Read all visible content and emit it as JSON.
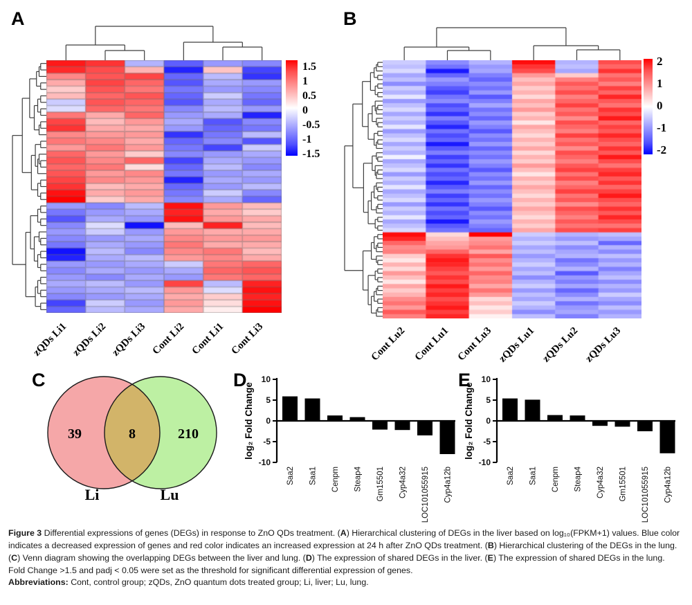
{
  "chart_data": [
    {
      "panel": "A",
      "type": "heatmap",
      "columns": [
        "zQDs Li1",
        "zQDs Li2",
        "zQDs Li3",
        "Cont Li2",
        "Cont Li1",
        "Cont Li3"
      ],
      "colorbar_ticks": [
        "1.5",
        "1",
        "0.5",
        "0",
        "-0.5",
        "-1",
        "-1.5"
      ],
      "vmin": -1.5,
      "vmax": 1.5,
      "grid": true,
      "rows": [
        [
          1.35,
          1.2,
          -0.45,
          -0.95,
          -0.6,
          -0.7
        ],
        [
          1.25,
          1.05,
          0.45,
          -1.3,
          0.35,
          -1.1
        ],
        [
          0.7,
          1.0,
          1.1,
          -0.9,
          -0.4,
          -1.2
        ],
        [
          0.5,
          1.1,
          0.9,
          -1.0,
          -0.5,
          -0.6
        ],
        [
          0.3,
          1.0,
          0.8,
          -0.8,
          -0.6,
          -0.7
        ],
        [
          0.4,
          0.9,
          1.0,
          -0.9,
          -0.3,
          -0.8
        ],
        [
          -0.3,
          1.0,
          0.9,
          -1.0,
          -0.5,
          -0.9
        ],
        [
          -0.2,
          0.9,
          0.8,
          -0.7,
          -0.4,
          -0.6
        ],
        [
          0.8,
          0.5,
          0.9,
          -0.6,
          -0.5,
          -1.3
        ],
        [
          1.1,
          0.4,
          0.6,
          -0.5,
          -1.0,
          -0.7
        ],
        [
          1.2,
          0.5,
          0.5,
          -0.6,
          -0.9,
          -0.8
        ],
        [
          0.7,
          0.6,
          0.6,
          -1.2,
          -0.8,
          -0.4
        ],
        [
          0.8,
          0.7,
          0.5,
          -0.9,
          -0.7,
          -1.0
        ],
        [
          0.6,
          0.8,
          0.6,
          -0.8,
          -1.1,
          -0.3
        ],
        [
          0.9,
          0.6,
          0.3,
          -0.7,
          -0.6,
          -0.5
        ],
        [
          1.0,
          0.7,
          0.9,
          -1.1,
          -0.5,
          -0.6
        ],
        [
          0.9,
          0.8,
          0.2,
          -0.9,
          -0.4,
          -0.7
        ],
        [
          1.0,
          0.6,
          0.7,
          -0.8,
          -0.6,
          -0.5
        ],
        [
          1.1,
          0.7,
          0.6,
          -1.3,
          -0.5,
          -0.6
        ],
        [
          1.2,
          0.4,
          0.5,
          -0.9,
          -0.6,
          -0.4
        ],
        [
          1.4,
          0.5,
          0.6,
          -0.8,
          -0.3,
          -0.7
        ],
        [
          1.5,
          0.3,
          0.5,
          -0.7,
          -0.5,
          -0.9
        ],
        [
          -0.6,
          -0.7,
          -0.4,
          1.4,
          0.6,
          0.4
        ],
        [
          -0.8,
          -0.6,
          -0.5,
          1.3,
          0.5,
          0.3
        ],
        [
          -1.0,
          -0.5,
          -0.6,
          1.4,
          0.6,
          0.5
        ],
        [
          -0.7,
          -0.2,
          -1.4,
          0.4,
          1.3,
          0.4
        ],
        [
          -0.6,
          -0.3,
          -0.6,
          0.6,
          0.5,
          0.5
        ],
        [
          -0.7,
          -0.6,
          -0.5,
          0.7,
          0.6,
          0.6
        ],
        [
          -0.8,
          -0.5,
          -0.6,
          0.8,
          0.5,
          0.5
        ],
        [
          -1.4,
          -0.4,
          -0.7,
          0.7,
          0.8,
          0.4
        ],
        [
          -1.3,
          -0.5,
          -0.4,
          0.6,
          0.7,
          0.5
        ],
        [
          -0.6,
          -0.6,
          -0.5,
          -0.3,
          0.8,
          0.9
        ],
        [
          -0.7,
          -0.5,
          -0.6,
          -0.5,
          0.9,
          1.0
        ],
        [
          -0.6,
          -0.7,
          -0.5,
          -0.6,
          0.8,
          0.9
        ],
        [
          -0.5,
          -0.4,
          -0.6,
          1.1,
          -0.4,
          1.3
        ],
        [
          -0.6,
          -0.5,
          -0.4,
          0.6,
          -0.2,
          1.4
        ],
        [
          -0.7,
          -0.6,
          -0.5,
          0.5,
          0.3,
          1.3
        ],
        [
          -1.1,
          -0.3,
          -0.6,
          0.6,
          0.2,
          1.4
        ],
        [
          -0.9,
          -0.4,
          -0.5,
          0.5,
          0.1,
          1.5
        ]
      ]
    },
    {
      "panel": "B",
      "type": "heatmap",
      "columns": [
        "Cont Lu2",
        "Cont Lu1",
        "Cont Lu3",
        "zQDs Lu1",
        "zQDs Lu2",
        "zQDs Lu3"
      ],
      "colorbar_ticks": [
        "2",
        "1",
        "0",
        "-1",
        "-2"
      ],
      "vmin": -2,
      "vmax": 2,
      "grid": false,
      "rows": [
        [
          -0.4,
          -0.9,
          -0.6,
          1.9,
          -0.6,
          1.4
        ],
        [
          -0.5,
          -1.1,
          -0.8,
          1.6,
          -0.5,
          1.2
        ],
        [
          -0.3,
          -1.8,
          -0.7,
          1.4,
          -0.7,
          1.6
        ],
        [
          -0.7,
          -1.2,
          -1.0,
          0.8,
          0.4,
          1.1
        ],
        [
          -0.5,
          -0.8,
          -1.2,
          0.5,
          1.0,
          1.3
        ],
        [
          -0.9,
          -1.0,
          -0.9,
          0.7,
          1.3,
          1.0
        ],
        [
          -0.4,
          -1.3,
          -1.1,
          0.4,
          1.1,
          1.5
        ],
        [
          -0.6,
          -1.5,
          -0.8,
          0.6,
          1.4,
          1.2
        ],
        [
          -0.2,
          -1.1,
          -1.3,
          0.3,
          1.0,
          1.7
        ],
        [
          -0.8,
          -0.9,
          -1.0,
          0.7,
          1.2,
          1.3
        ],
        [
          -0.5,
          -1.4,
          -0.7,
          0.5,
          1.5,
          1.1
        ],
        [
          -0.3,
          -1.2,
          -1.1,
          0.8,
          1.1,
          1.6
        ],
        [
          -0.7,
          -1.6,
          -0.9,
          0.4,
          1.3,
          1.4
        ],
        [
          -0.4,
          -1.0,
          -1.2,
          0.6,
          0.9,
          1.8
        ],
        [
          -0.6,
          -1.3,
          -0.8,
          0.2,
          1.4,
          1.2
        ],
        [
          -0.2,
          -1.7,
          -1.0,
          0.7,
          1.2,
          1.5
        ],
        [
          -0.8,
          -1.1,
          -1.3,
          0.5,
          1.0,
          1.3
        ],
        [
          -0.5,
          -1.4,
          -0.9,
          0.3,
          1.5,
          1.7
        ],
        [
          -0.3,
          -1.2,
          -1.1,
          0.6,
          1.1,
          1.4
        ],
        [
          -0.7,
          -1.8,
          -0.8,
          0.4,
          1.3,
          1.2
        ],
        [
          -0.4,
          -1.3,
          -1.2,
          0.7,
          0.9,
          1.6
        ],
        [
          -0.6,
          -1.0,
          -0.9,
          0.3,
          1.4,
          1.3
        ],
        [
          -0.1,
          -1.5,
          -1.1,
          0.6,
          1.2,
          1.8
        ],
        [
          -0.7,
          -1.2,
          -0.8,
          0.4,
          1.0,
          1.4
        ],
        [
          -0.5,
          -1.6,
          -1.0,
          0.8,
          1.3,
          1.1
        ],
        [
          -0.3,
          -1.1,
          -1.3,
          0.5,
          1.5,
          1.5
        ],
        [
          -0.8,
          -1.4,
          -0.9,
          0.2,
          1.1,
          1.7
        ],
        [
          -0.4,
          -1.2,
          -1.1,
          0.6,
          1.4,
          1.3
        ],
        [
          -0.6,
          -1.7,
          -0.8,
          0.4,
          1.0,
          1.6
        ],
        [
          -0.2,
          -1.3,
          -1.2,
          0.7,
          1.2,
          1.2
        ],
        [
          -0.7,
          -1.0,
          -0.9,
          0.5,
          1.5,
          1.5
        ],
        [
          -0.5,
          -1.5,
          -1.1,
          0.3,
          1.1,
          1.8
        ],
        [
          -0.3,
          -1.2,
          -0.8,
          0.6,
          1.3,
          1.4
        ],
        [
          -0.8,
          -1.6,
          -1.0,
          0.4,
          0.9,
          1.2
        ],
        [
          -0.4,
          -1.1,
          -1.3,
          0.7,
          1.4,
          1.6
        ],
        [
          -0.6,
          -1.4,
          -0.9,
          0.5,
          1.2,
          1.3
        ],
        [
          -0.2,
          -1.2,
          -1.1,
          0.3,
          1.0,
          1.7
        ],
        [
          -0.7,
          -1.8,
          -0.8,
          0.6,
          1.3,
          1.4
        ],
        [
          -0.5,
          -1.3,
          -1.0,
          0.4,
          1.1,
          1.1
        ],
        [
          -0.3,
          -1.1,
          -1.2,
          0.7,
          1.4,
          1.5
        ],
        [
          1.9,
          0.3,
          2.0,
          -0.4,
          -0.6,
          -0.5
        ],
        [
          1.7,
          0.5,
          0.8,
          -0.6,
          -0.8,
          -0.7
        ],
        [
          1.2,
          0.7,
          0.9,
          -0.4,
          -0.5,
          -1.2
        ],
        [
          0.9,
          0.8,
          1.1,
          -0.7,
          -0.9,
          -0.6
        ],
        [
          1.0,
          1.2,
          0.7,
          -0.5,
          -0.7,
          -0.9
        ],
        [
          0.4,
          1.6,
          1.3,
          -0.8,
          -0.6,
          -0.5
        ],
        [
          0.2,
          1.8,
          0.9,
          -0.6,
          -1.1,
          -0.8
        ],
        [
          0.6,
          1.7,
          1.1,
          -0.4,
          -0.9,
          -0.6
        ],
        [
          0.3,
          1.5,
          0.8,
          -0.7,
          -0.6,
          -1.0
        ],
        [
          0.8,
          1.3,
          1.2,
          -0.5,
          -1.3,
          -0.7
        ],
        [
          0.5,
          1.6,
          0.9,
          -0.9,
          -0.8,
          -0.5
        ],
        [
          0.2,
          1.4,
          1.0,
          -0.6,
          -1.0,
          -0.9
        ],
        [
          0.7,
          1.8,
          0.7,
          -0.4,
          -0.7,
          -0.6
        ],
        [
          0.4,
          1.5,
          1.1,
          -0.8,
          -1.2,
          -0.8
        ],
        [
          0.6,
          1.7,
          0.8,
          -0.5,
          -0.9,
          -0.4
        ],
        [
          0.9,
          1.4,
          0.3,
          -0.7,
          -0.6,
          -0.7
        ],
        [
          1.1,
          1.6,
          0.5,
          -0.4,
          -1.1,
          -0.9
        ],
        [
          0.8,
          1.8,
          0.2,
          -0.6,
          -0.8,
          -0.5
        ],
        [
          1.3,
          1.5,
          0.4,
          -0.9,
          -0.7,
          -0.8
        ],
        [
          1.0,
          1.7,
          0.1,
          -0.5,
          -1.0,
          -0.6
        ]
      ]
    },
    {
      "panel": "C",
      "type": "venn",
      "left_label": "Li",
      "left_count": "39",
      "left_color": "#F5A7A8",
      "right_label": "Lu",
      "right_count": "210",
      "right_color": "#BDF0A3",
      "overlap_count": "8",
      "overlap_color": "#D2B469"
    },
    {
      "panel": "D",
      "type": "bar",
      "ylabel": "log₂ Fold Change",
      "ylim": [
        -10,
        10
      ],
      "yticks": [
        10,
        5,
        0,
        -5,
        -10
      ],
      "categories": [
        "Saa2",
        "Saa1",
        "Cenpm",
        "Steap4",
        "Gm15501",
        "Cyp4a32",
        "LOC101055915",
        "Cyp4a12b"
      ],
      "values": [
        5.9,
        5.4,
        1.3,
        0.9,
        -2.1,
        -2.2,
        -3.5,
        -8.0
      ]
    },
    {
      "panel": "E",
      "type": "bar",
      "ylabel": "log₂ Fold Change",
      "ylim": [
        -10,
        10
      ],
      "yticks": [
        10,
        5,
        0,
        -5,
        -10
      ],
      "categories": [
        "Saa2",
        "Saa1",
        "Cenpm",
        "Steap4",
        "Cyp4a32",
        "Gm15501",
        "LOC101055915",
        "Cyp4a12b"
      ],
      "values": [
        5.4,
        5.1,
        1.4,
        1.3,
        -1.2,
        -1.4,
        -2.5,
        -7.8
      ]
    }
  ],
  "colors": {
    "heat_positive": "#FF0000",
    "heat_negative": "#0000FF",
    "heat_mid": "#FFFFFF",
    "dendrogram": "#3D3D3D",
    "bar": "#000000"
  },
  "caption": {
    "paragraph": [
      {
        "t": "Figure 3 ",
        "b": true
      },
      {
        "t": "Differential expressions of genes (DEGs) in response to ZnO QDs treatment. ("
      },
      {
        "t": "A",
        "b": true
      },
      {
        "t": ") Hierarchical clustering of DEGs in the liver based on log₁₀(FPKM+1) values. Blue color indicates a decreased expression of genes and red color indicates an increased expression at 24 h after ZnO QDs treatment. ("
      },
      {
        "t": "B",
        "b": true
      },
      {
        "t": ") Hierarchical clustering of the DEGs in the lung. ("
      },
      {
        "t": "C",
        "b": true
      },
      {
        "t": ") Venn diagram showing the overlapping DEGs between the liver and lung. ("
      },
      {
        "t": "D",
        "b": true
      },
      {
        "t": ") The expression of shared DEGs in the liver. ("
      },
      {
        "t": "E",
        "b": true
      },
      {
        "t": ") The expression of shared DEGs in the lung. Fold Change >1.5 and padj < 0.05 were set as the threshold for significant differential expression of genes."
      }
    ],
    "abbreviations": [
      {
        "t": "Abbreviations: ",
        "b": true
      },
      {
        "t": "Cont, control group; zQDs, ZnO quantum dots treated group; Li, liver; Lu, lung."
      }
    ]
  }
}
